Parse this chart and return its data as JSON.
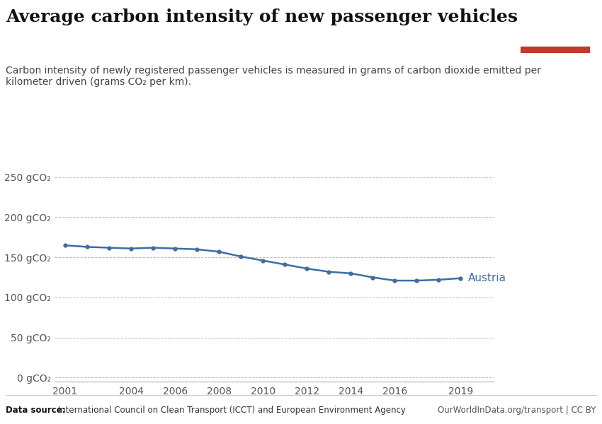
{
  "title": "Average carbon intensity of new passenger vehicles",
  "subtitle": "Carbon intensity of newly registered passenger vehicles is measured in grams of carbon dioxide emitted per\nkilometer driven (grams CO₂ per km).",
  "years": [
    2001,
    2002,
    2003,
    2004,
    2005,
    2006,
    2007,
    2008,
    2009,
    2010,
    2011,
    2012,
    2013,
    2014,
    2015,
    2016,
    2017,
    2018,
    2019
  ],
  "values": [
    165,
    163,
    162,
    161,
    162,
    161,
    160,
    157,
    151,
    146,
    141,
    136,
    132,
    130,
    125,
    121,
    121,
    122,
    124
  ],
  "line_color": "#3d6da3",
  "marker_color": "#3d6da3",
  "label": "Austria",
  "label_color": "#3d6da3",
  "yticks": [
    0,
    50,
    100,
    150,
    200,
    250
  ],
  "ytick_labels": [
    "0 gCO₂",
    "50 gCO₂",
    "100 gCO₂",
    "150 gCO₂",
    "200 gCO₂",
    "250 gCO₂"
  ],
  "xticks": [
    2001,
    2004,
    2006,
    2008,
    2010,
    2012,
    2014,
    2016,
    2019
  ],
  "ylim": [
    -5,
    270
  ],
  "xlim": [
    2000.5,
    2020.5
  ],
  "background_color": "#ffffff",
  "grid_color": "#bbbbbb",
  "datasource_bold": "Data source:",
  "datasource_rest": " International Council on Clean Transport (ICCT) and European Environment Agency",
  "credit": "OurWorldInData.org/transport | CC BY",
  "owid_bg": "#1a3a5c",
  "owid_red": "#c0392b",
  "title_fontsize": 18,
  "subtitle_fontsize": 10,
  "tick_fontsize": 10,
  "label_fontsize": 11
}
